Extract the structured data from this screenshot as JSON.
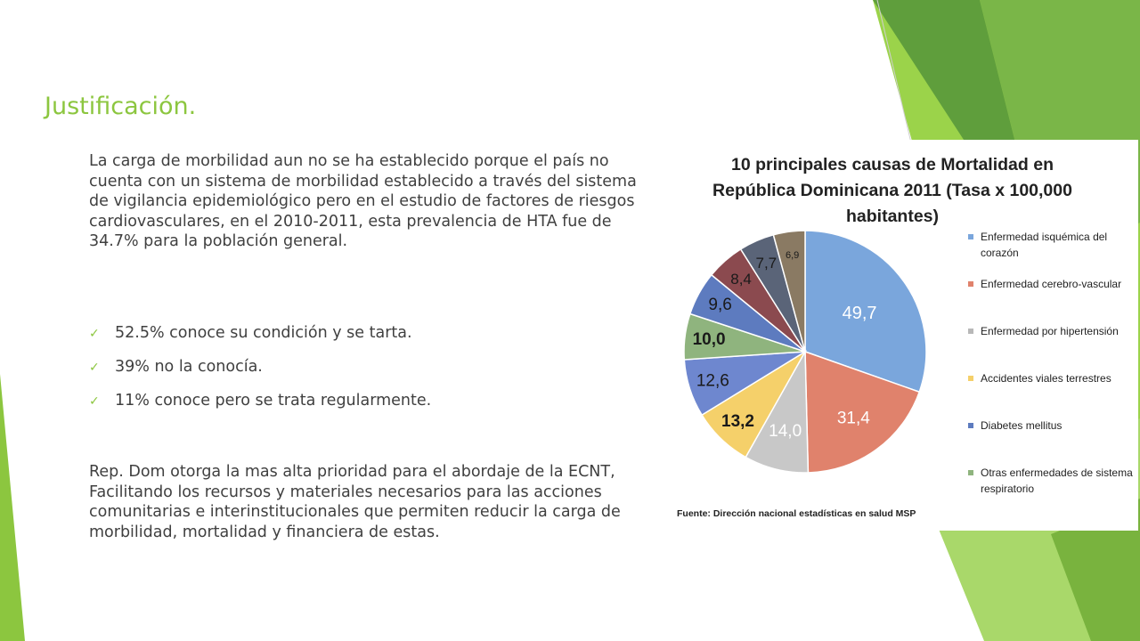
{
  "slide": {
    "title": "Justificación.",
    "paragraph_1": "La carga de morbilidad aun no se ha establecido porque el país no cuenta con un sistema de morbilidad establecido a través del sistema de vigilancia epidemiológico pero en el estudio de factores de riesgos cardiovasculares, en el 2010-2011, esta prevalencia de HTA fue de 34.7% para la población general.",
    "bullets": [
      "52.5% conoce su condición y se tarta.",
      "39% no la conocía.",
      "11% conoce pero se trata regularmente."
    ],
    "paragraph_2": "Rep. Dom otorga la mas alta prioridad para el abordaje de la ECNT, Facilitando los recursos y materiales necesarios para las acciones comunitarias e interinstitucionales que permiten reducir la carga de morbilidad, mortalidad y financiera de estas.",
    "check_icon": "checkmark-icon",
    "accent_color": "#8cc63f"
  },
  "chart_data": {
    "type": "pie",
    "title_line_1": "10 principales causas de Mortalidad en",
    "title_line_2": "República Dominicana 2011 (Tasa x 100,000 habitantes)",
    "source": "Fuente: Dirección nacional estadísticas en salud MSP",
    "slices": [
      {
        "label": "49,7",
        "value": 49.7,
        "color": "#7aa6dc"
      },
      {
        "label": "31,4",
        "value": 31.4,
        "color": "#e0826c"
      },
      {
        "label": "14,0",
        "value": 14.0,
        "color": "#c8c8c8"
      },
      {
        "label": "13,2",
        "value": 13.2,
        "color": "#f5d06a"
      },
      {
        "label": "12,6",
        "value": 12.6,
        "color": "#6e87cf"
      },
      {
        "label": "10,0",
        "value": 10.0,
        "color": "#8fb47e"
      },
      {
        "label": "9,6",
        "value": 9.6,
        "color": "#5d7bbf"
      },
      {
        "label": "8,4",
        "value": 8.4,
        "color": "#8b4a4f"
      },
      {
        "label": "7,7",
        "value": 7.7,
        "color": "#5a6478"
      },
      {
        "label": "6,9",
        "value": 6.9,
        "color": "#8a7a63"
      }
    ],
    "legend": [
      {
        "label": "Enfermedad isquémica del corazón",
        "color": "#7aa6dc"
      },
      {
        "label": "Enfermedad cerebro-vascular",
        "color": "#e0826c"
      },
      {
        "label": "Enfermedad por hipertensión",
        "color": "#b8b8b8"
      },
      {
        "label": "Accidentes viales terrestres",
        "color": "#f5d06a"
      },
      {
        "label": "Diabetes mellitus",
        "color": "#5d7bbf"
      },
      {
        "label": "Otras enfermedades de sistema respiratorio",
        "color": "#8fb47e"
      }
    ]
  }
}
